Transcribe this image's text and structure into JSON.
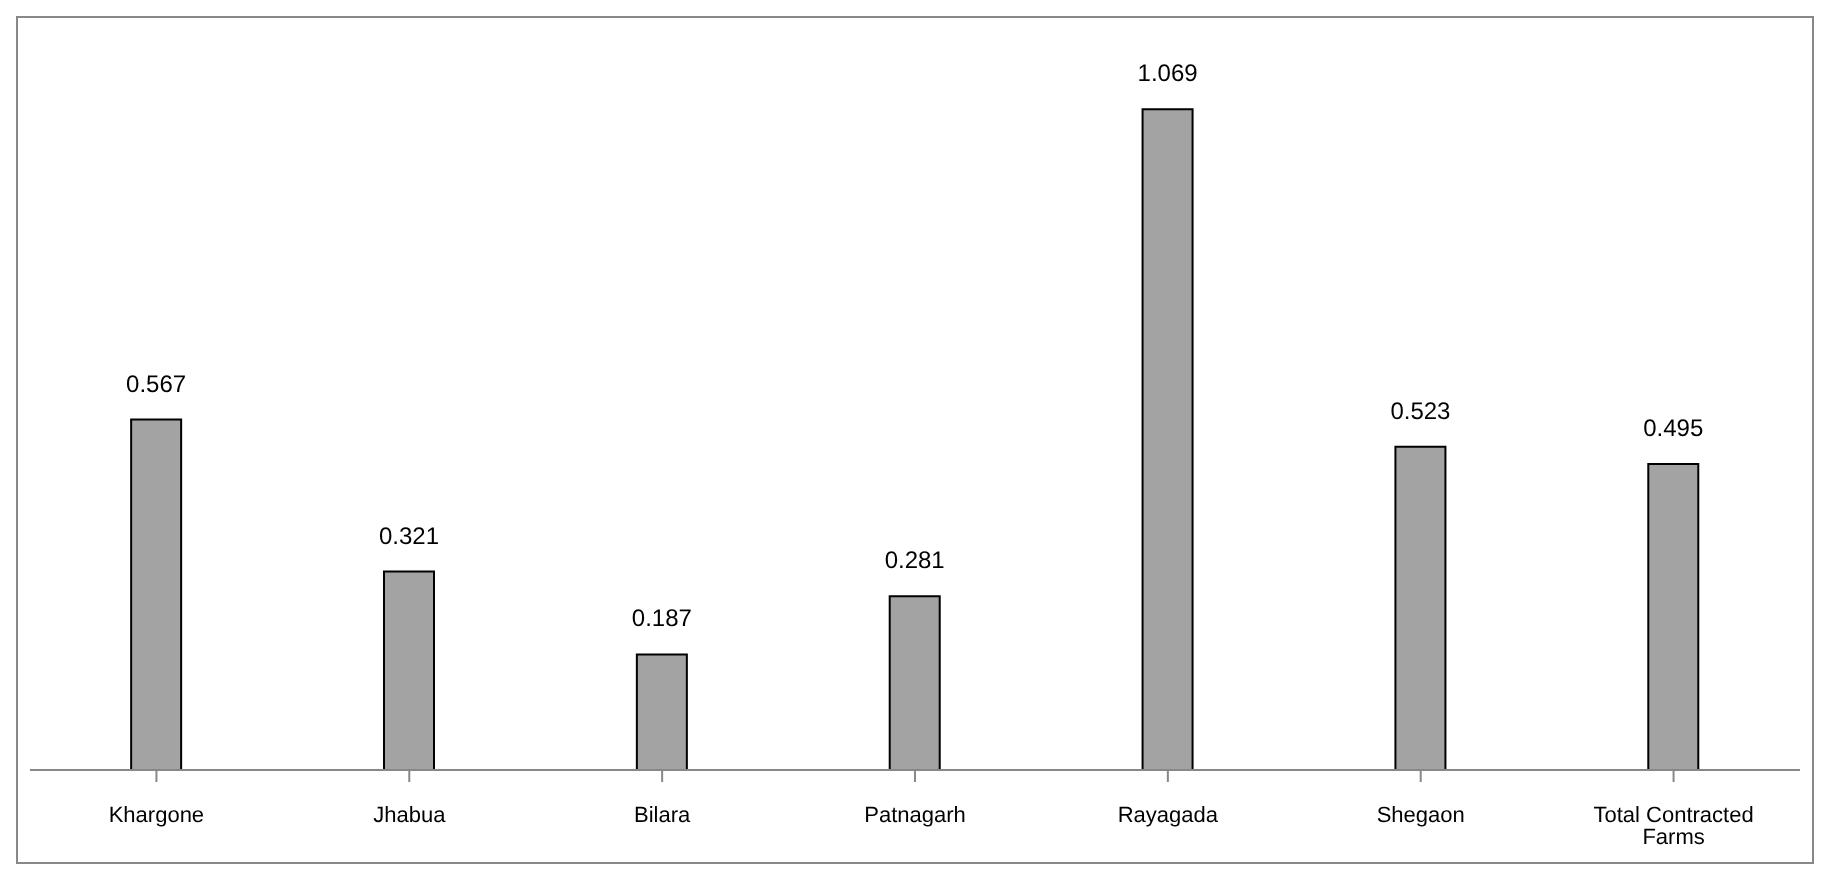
{
  "chart_data": {
    "type": "bar",
    "categories": [
      "Khargone",
      "Jhabua",
      "Bilara",
      "Patnagarh",
      "Rayagada",
      "Shegaon",
      "Total Contracted Farms"
    ],
    "values": [
      0.567,
      0.321,
      0.187,
      0.281,
      1.069,
      0.523,
      0.495
    ],
    "color": "#a3a3a3",
    "data_labels": true
  }
}
